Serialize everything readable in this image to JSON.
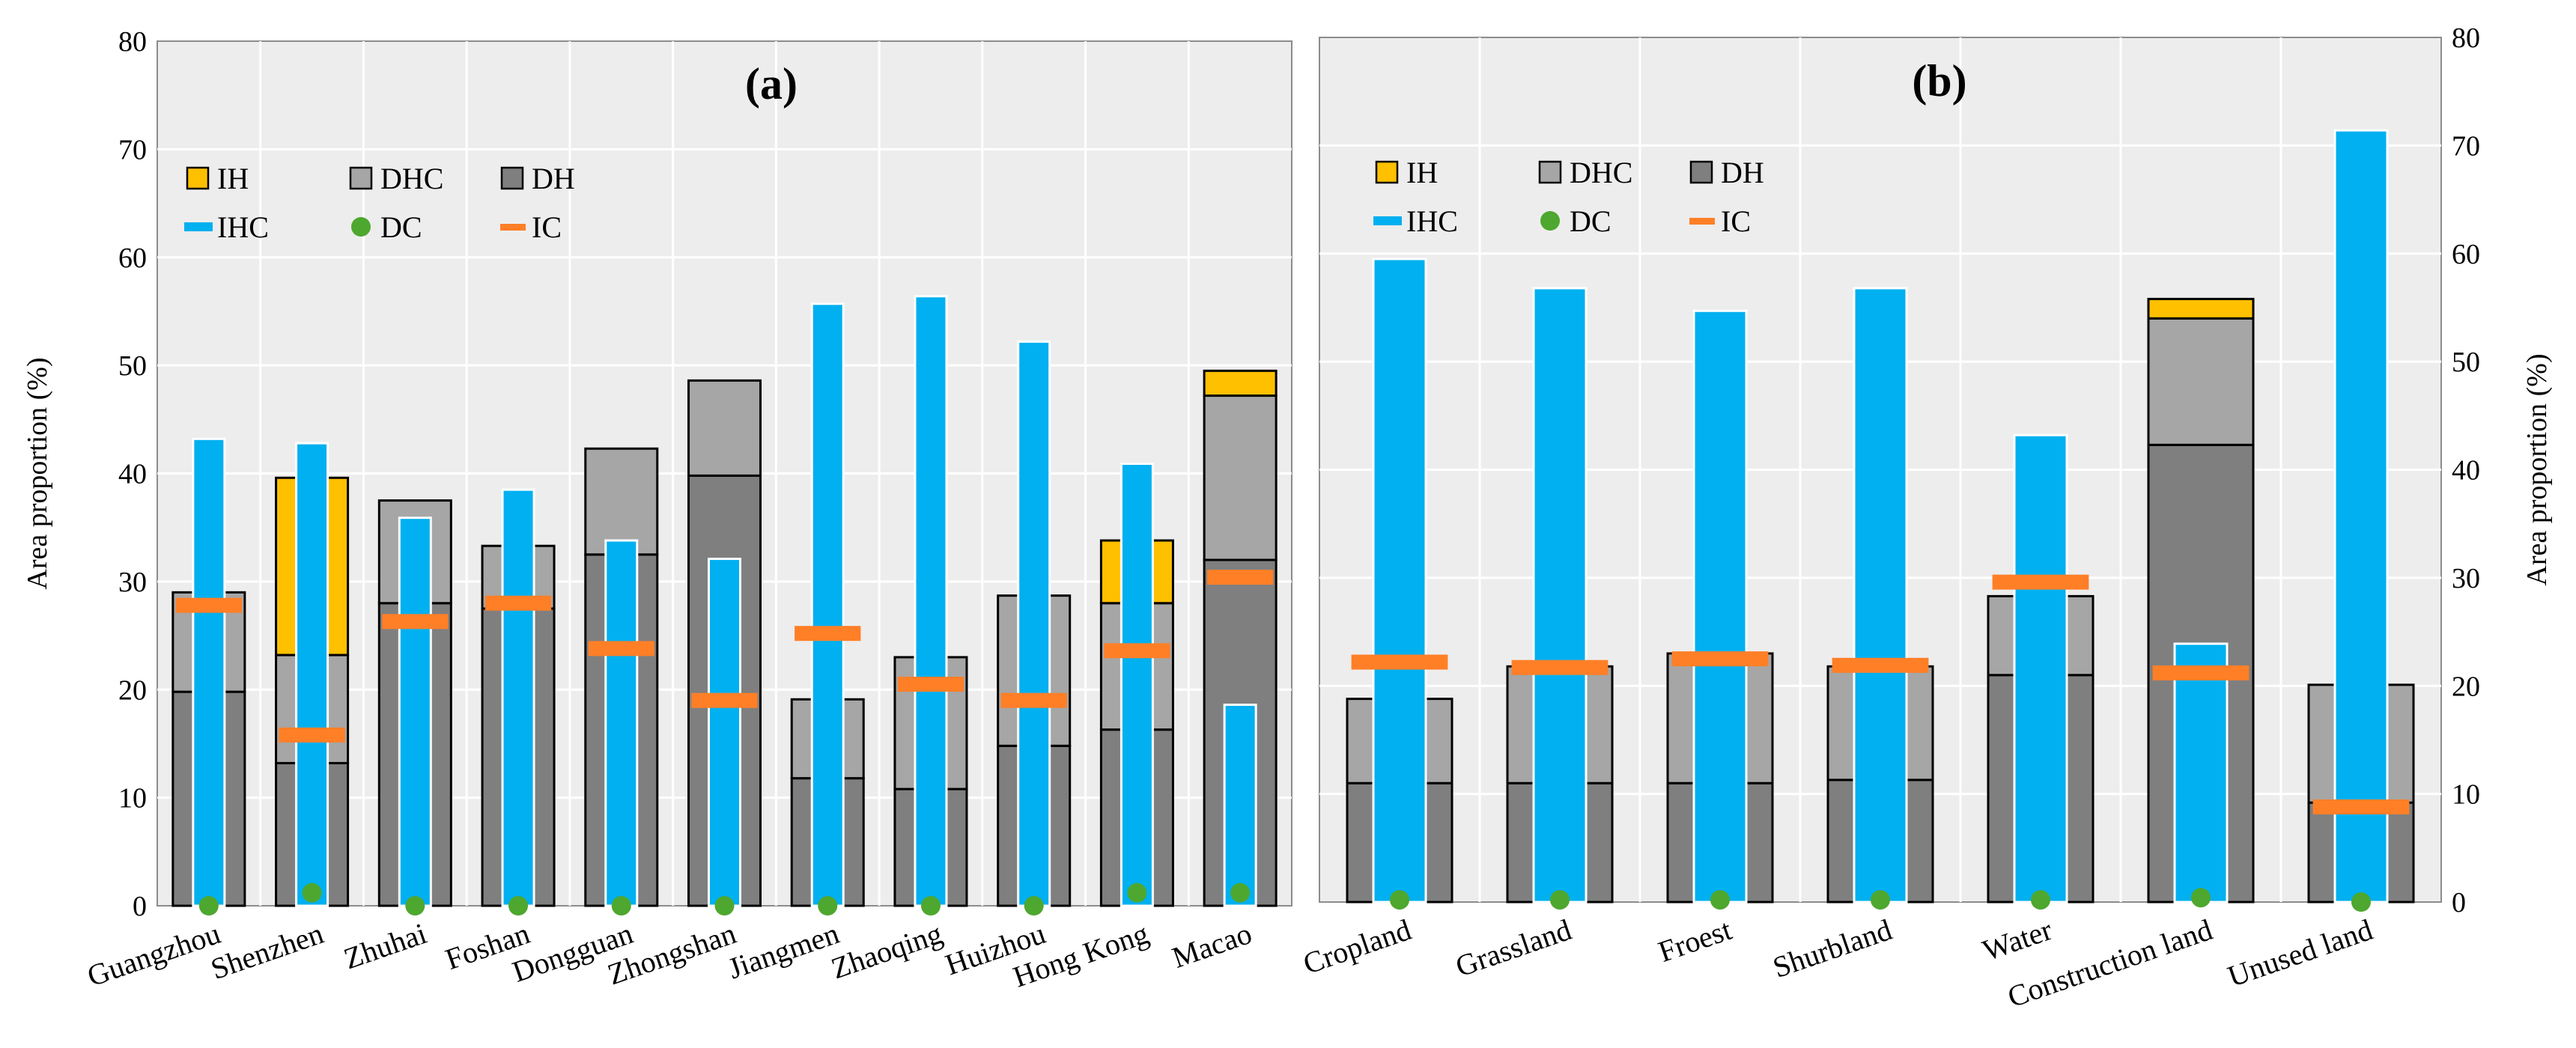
{
  "colors": {
    "IH": "#FFC000",
    "DHC": "#A6A6A6",
    "DH": "#7F7F7F",
    "IHC": "#00B0F0",
    "DC": "#4EA72E",
    "IC": "#FF7F27",
    "plot_bg": "#EDEDED",
    "grid": "#FFFFFF"
  },
  "chart_data": [
    {
      "type": "bar",
      "title": "(a)",
      "xlabel": "",
      "ylabel": "Area proportion (%)",
      "ylim": [
        0,
        80
      ],
      "yticks": [
        "0",
        "10",
        "20",
        "30",
        "40",
        "50",
        "60",
        "70",
        "80"
      ],
      "y_axis_side": "left",
      "legend_position": "top-left",
      "legend": [
        "IH",
        "DHC",
        "DH",
        "IHC",
        "DC",
        "IC"
      ],
      "categories": [
        "Guangzhou",
        "Shenzhen",
        "Zhuhai",
        "Foshan",
        "Dongguan",
        "Zhongshan",
        "Jiangmen",
        "Zhaoqing",
        "Huizhou",
        "Hong Kong",
        "Macao"
      ],
      "series": [
        {
          "name": "DH",
          "kind": "stacked-bar",
          "values": [
            19.8,
            13.2,
            28.0,
            27.5,
            32.5,
            39.8,
            11.8,
            10.8,
            14.8,
            16.3,
            32.0
          ]
        },
        {
          "name": "DHC",
          "kind": "stacked-bar",
          "values": [
            9.2,
            10.0,
            9.5,
            5.8,
            9.8,
            8.8,
            7.3,
            12.2,
            13.9,
            11.7,
            15.2
          ]
        },
        {
          "name": "IH",
          "kind": "stacked-bar",
          "values": [
            0,
            16.4,
            0,
            0,
            0,
            0,
            0,
            0,
            0,
            5.8,
            2.3
          ]
        },
        {
          "name": "IHC",
          "kind": "bar",
          "values": [
            43.2,
            42.8,
            35.9,
            38.5,
            33.8,
            32.1,
            55.7,
            56.4,
            52.2,
            40.9,
            18.6
          ]
        },
        {
          "name": "IC",
          "kind": "marker-line",
          "values": [
            27.8,
            15.8,
            26.3,
            28.0,
            23.8,
            19.0,
            25.2,
            20.5,
            19.0,
            23.6,
            30.4
          ]
        },
        {
          "name": "DC",
          "kind": "marker-dot",
          "values": [
            0.0,
            1.2,
            0.0,
            0.0,
            0.0,
            0.0,
            0.0,
            0.0,
            0.0,
            1.2,
            1.2
          ]
        }
      ]
    },
    {
      "type": "bar",
      "title": "(b)",
      "xlabel": "",
      "ylabel": "Area proportion (%)",
      "ylim": [
        0,
        80
      ],
      "yticks": [
        "0",
        "10",
        "20",
        "30",
        "40",
        "50",
        "60",
        "70",
        "80"
      ],
      "y_axis_side": "right",
      "legend_position": "top-left",
      "legend": [
        "IH",
        "DHC",
        "DH",
        "IHC",
        "DC",
        "IC"
      ],
      "categories": [
        "Cropland",
        "Grassland",
        "Froest",
        "Shurbland",
        "Water",
        "Construction land",
        "Unused land"
      ],
      "series": [
        {
          "name": "DH",
          "kind": "stacked-bar",
          "values": [
            11.0,
            11.0,
            11.0,
            11.3,
            21.0,
            42.3,
            9.2
          ]
        },
        {
          "name": "DHC",
          "kind": "stacked-bar",
          "values": [
            7.8,
            10.8,
            12.0,
            10.5,
            7.3,
            11.7,
            10.9
          ]
        },
        {
          "name": "IH",
          "kind": "stacked-bar",
          "values": [
            0,
            0,
            0,
            0,
            0,
            1.8,
            0
          ]
        },
        {
          "name": "IHC",
          "kind": "bar",
          "values": [
            59.5,
            56.8,
            54.7,
            56.8,
            43.2,
            23.9,
            71.4
          ]
        },
        {
          "name": "IC",
          "kind": "marker-line",
          "values": [
            22.2,
            21.7,
            22.5,
            21.9,
            29.6,
            21.2,
            8.8
          ]
        },
        {
          "name": "DC",
          "kind": "marker-dot",
          "values": [
            0.2,
            0.2,
            0.2,
            0.2,
            0.2,
            0.4,
            0.0
          ]
        }
      ]
    }
  ]
}
